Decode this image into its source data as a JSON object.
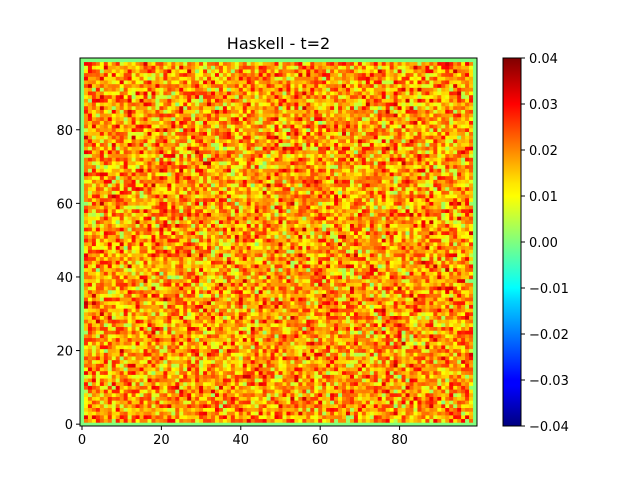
{
  "chart_data": {
    "type": "heatmap",
    "title": "Haskell - t=2",
    "xlabel": "",
    "ylabel": "",
    "grid": false,
    "colormap": "jet",
    "grid_size": [
      100,
      100
    ],
    "x_range": [
      0,
      99
    ],
    "y_range": [
      0,
      99
    ],
    "x_ticks": [
      "0",
      "20",
      "40",
      "60",
      "80"
    ],
    "y_ticks": [
      "0",
      "20",
      "40",
      "60",
      "80"
    ],
    "value_range": [
      -0.04,
      0.04
    ],
    "colorbar_ticks": [
      "0.04",
      "0.03",
      "0.02",
      "0.01",
      "0.00",
      "−0.01",
      "−0.02",
      "−0.03",
      "−0.04"
    ],
    "boundary_value": 0.0,
    "interior_value_range_estimate": [
      0.0,
      0.035
    ],
    "interior_value_mean_estimate": 0.017,
    "values_note": "Noisy per-cell field; boundary cells ~0.00, interior cells vary between about 0.00 and 0.035."
  }
}
